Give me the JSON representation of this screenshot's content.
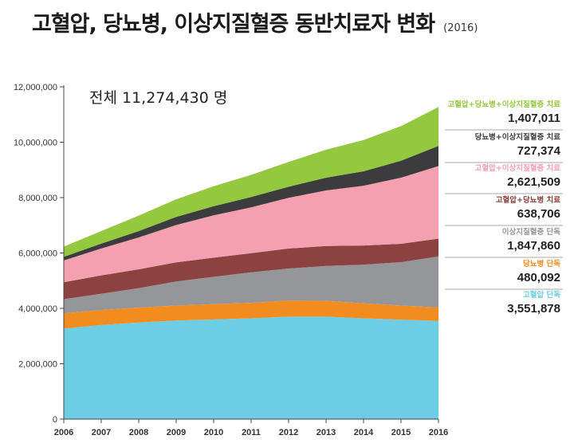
{
  "title": "고혈압, 당뇨병, 이상지질혈증 동반치료자 변화",
  "subtitle": "(2016)",
  "colors": {
    "hyp_only": "#6ccde4",
    "dia_only": "#f28c1e",
    "lip_only": "#95969a",
    "hyp_dia": "#8b4240",
    "hyp_lip": "#f4a0b0",
    "dia_lip": "#3c3c3e",
    "all_three": "#94c83e"
  },
  "chart_data": {
    "type": "area",
    "stacked": true,
    "x": [
      2006,
      2007,
      2008,
      2009,
      2010,
      2011,
      2012,
      2013,
      2014,
      2015,
      2016
    ],
    "ylim": [
      0,
      12000000
    ],
    "y_ticks": [
      "0",
      "2,000,000",
      "4,000,000",
      "6,000,000",
      "8,000,000",
      "10,000,000",
      "12,000,000"
    ],
    "x_ticks": [
      "2006",
      "2007",
      "2008",
      "2009",
      "2010",
      "2011",
      "2012",
      "2013",
      "2014",
      "2015",
      "2016"
    ],
    "grid": false,
    "legend_position": "right",
    "annotation": "전체 11,274,430 명",
    "series": [
      {
        "name": "고혈압 단독",
        "label": "3,551,878",
        "color_key": "hyp_only",
        "values": [
          3270000,
          3400000,
          3490000,
          3560000,
          3600000,
          3640000,
          3700000,
          3700000,
          3640000,
          3590000,
          3551878
        ]
      },
      {
        "name": "당뇨병 단독",
        "label": "480,092",
        "color_key": "dia_only",
        "values": [
          550000,
          540000,
          540000,
          540000,
          550000,
          560000,
          580000,
          570000,
          540000,
          510000,
          480092
        ]
      },
      {
        "name": "이상지질혈증 단독",
        "label": "1,847,860",
        "color_key": "lip_only",
        "values": [
          510000,
          590000,
          700000,
          870000,
          990000,
          1100000,
          1160000,
          1260000,
          1400000,
          1570000,
          1847860
        ]
      },
      {
        "name": "고혈압+당뇨병 치료",
        "label": "638,706",
        "color_key": "hyp_dia",
        "values": [
          610000,
          660000,
          680000,
          690000,
          690000,
          690000,
          720000,
          720000,
          690000,
          660000,
          638706
        ]
      },
      {
        "name": "고혈압+이상지질혈증 치료",
        "label": "2,621,509",
        "color_key": "hyp_lip",
        "values": [
          790000,
          970000,
          1150000,
          1350000,
          1530000,
          1660000,
          1830000,
          2010000,
          2160000,
          2390000,
          2621509
        ]
      },
      {
        "name": "당뇨병+이상지질혈증 치료",
        "label": "727,374",
        "color_key": "dia_lip",
        "values": [
          130000,
          180000,
          230000,
          290000,
          330000,
          370000,
          400000,
          460000,
          520000,
          610000,
          727374
        ]
      },
      {
        "name": "고혈압+당뇨병+이상지질혈증 치료",
        "label": "1,407,011",
        "color_key": "all_three",
        "values": [
          370000,
          450000,
          560000,
          640000,
          720000,
          800000,
          900000,
          1010000,
          1130000,
          1250000,
          1407011
        ]
      }
    ]
  }
}
